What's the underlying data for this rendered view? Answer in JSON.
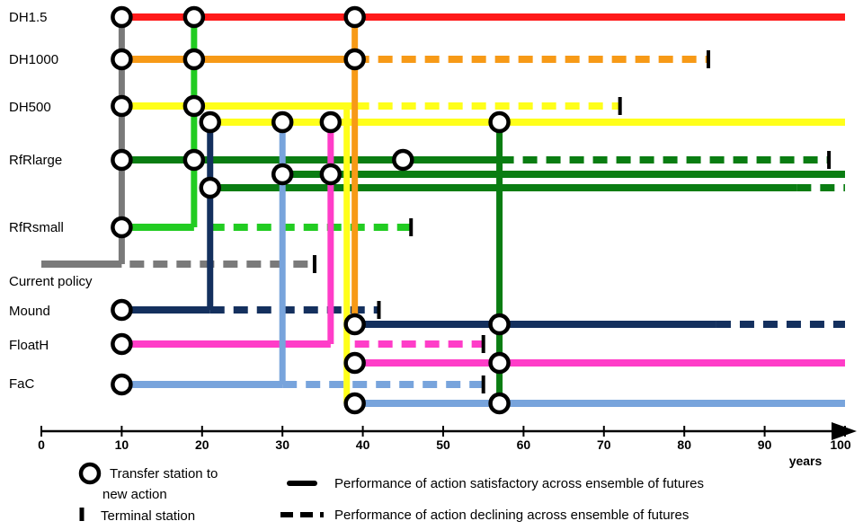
{
  "colors": {
    "DH1.5": "#ff1a1a",
    "DH1000": "#f79a17",
    "DH500": "#ffff1a",
    "RfRlarge": "#0a7d12",
    "RfRsmall": "#22cc22",
    "Current policy": "#7a7a7a",
    "Mound": "#14305e",
    "FloatH": "#ff3dc8",
    "FaC": "#78a4dc"
  },
  "action_labels": [
    "DH1.5",
    "DH1000",
    "DH500",
    "RfRlarge",
    "RfRsmall",
    "Current policy",
    "Mound",
    "FloatH",
    "FaC"
  ],
  "chart_data": {
    "type": "adaptation-pathways-map",
    "xaxis": {
      "range": [
        0,
        100
      ],
      "ticks": [
        0,
        10,
        20,
        30,
        40,
        50,
        60,
        70,
        80,
        90,
        100
      ],
      "label": "years"
    },
    "segments": [
      {
        "action": "DH1.5",
        "row": "DH1.5",
        "from": 10,
        "to": 100,
        "style": "solid"
      },
      {
        "action": "DH1000",
        "row": "DH1000",
        "from": 10,
        "to": 39,
        "style": "solid"
      },
      {
        "action": "DH1000",
        "row": "DH1000",
        "from": 39,
        "to": 83,
        "style": "dashed"
      },
      {
        "action": "DH500",
        "row": "DH500",
        "from": 10,
        "to": 39,
        "style": "solid"
      },
      {
        "action": "DH500",
        "row": "DH500",
        "from": 39,
        "to": 72,
        "style": "dashed"
      },
      {
        "action": "DH500",
        "row": "DH500b",
        "from": 21,
        "to": 100,
        "style": "solid"
      },
      {
        "action": "RfRlarge",
        "row": "RfRlarge",
        "from": 10,
        "to": 57,
        "style": "solid"
      },
      {
        "action": "RfRlarge",
        "row": "RfRlarge",
        "from": 57,
        "to": 98,
        "style": "dashed"
      },
      {
        "action": "RfRlarge",
        "row": "RfRlargeb",
        "from": 30,
        "to": 100,
        "style": "solid"
      },
      {
        "action": "RfRlarge",
        "row": "RfRlargec",
        "from": 21,
        "to": 94,
        "style": "solid"
      },
      {
        "action": "RfRlarge",
        "row": "RfRlargec",
        "from": 94,
        "to": 100,
        "style": "dashed"
      },
      {
        "action": "RfRsmall",
        "row": "RfRsmall",
        "from": 10,
        "to": 19,
        "style": "solid"
      },
      {
        "action": "RfRsmall",
        "row": "RfRsmall",
        "from": 21,
        "to": 46,
        "style": "dashed"
      },
      {
        "action": "Current policy",
        "row": "Current policy",
        "from": 0,
        "to": 10,
        "style": "solid"
      },
      {
        "action": "Current policy",
        "row": "Current policy",
        "from": 11,
        "to": 34,
        "style": "dashed"
      },
      {
        "action": "Mound",
        "row": "Mound",
        "from": 10,
        "to": 21,
        "style": "solid"
      },
      {
        "action": "Mound",
        "row": "Mound",
        "from": 21,
        "to": 42,
        "style": "dashed"
      },
      {
        "action": "Mound",
        "row": "Moundb",
        "from": 39,
        "to": 84,
        "style": "solid"
      },
      {
        "action": "Mound",
        "row": "Moundb",
        "from": 84,
        "to": 100,
        "style": "dashed"
      },
      {
        "action": "FloatH",
        "row": "FloatH",
        "from": 10,
        "to": 36,
        "style": "solid"
      },
      {
        "action": "FloatH",
        "row": "FloatH",
        "from": 39,
        "to": 55,
        "style": "dashed"
      },
      {
        "action": "FloatH",
        "row": "FloatHb",
        "from": 39,
        "to": 100,
        "style": "solid"
      },
      {
        "action": "FaC",
        "row": "FaC",
        "from": 10,
        "to": 30,
        "style": "solid"
      },
      {
        "action": "FaC",
        "row": "FaC",
        "from": 30,
        "to": 55,
        "style": "dashed"
      },
      {
        "action": "FaC",
        "row": "FaCb",
        "from": 39,
        "to": 100,
        "style": "solid"
      }
    ],
    "transfers": [
      {
        "action": "Current policy",
        "at": 10,
        "from_row": "Current policy",
        "to_row": "DH1.5"
      },
      {
        "action": "RfRsmall",
        "at": 19,
        "from_row": "RfRsmall",
        "to_row": "DH1.5"
      },
      {
        "action": "Mound",
        "at": 21,
        "from_row": "Mound",
        "to_row": "DH500b"
      },
      {
        "action": "FaC",
        "at": 30,
        "from_row": "FaC",
        "to_row": "DH500b"
      },
      {
        "action": "FloatH",
        "at": 36,
        "from_row": "FloatH",
        "to_row": "DH500b"
      },
      {
        "action": "DH500",
        "at": 38,
        "from_row": "DH500",
        "to_row": "FaCb"
      },
      {
        "action": "DH1000",
        "at": 39,
        "from_row": "DH1.5",
        "to_row": "Moundb"
      },
      {
        "action": "RfRlarge",
        "at": 57,
        "from_row": "DH500b",
        "to_row": "FaCb"
      }
    ],
    "stations": [
      {
        "at": 10,
        "row": "DH1.5"
      },
      {
        "at": 19,
        "row": "DH1.5"
      },
      {
        "at": 39,
        "row": "DH1.5"
      },
      {
        "at": 10,
        "row": "DH1000"
      },
      {
        "at": 19,
        "row": "DH1000"
      },
      {
        "at": 39,
        "row": "DH1000"
      },
      {
        "at": 10,
        "row": "DH500"
      },
      {
        "at": 19,
        "row": "DH500"
      },
      {
        "at": 21,
        "row": "DH500b"
      },
      {
        "at": 30,
        "row": "DH500b"
      },
      {
        "at": 36,
        "row": "DH500b"
      },
      {
        "at": 57,
        "row": "DH500b"
      },
      {
        "at": 10,
        "row": "RfRlarge"
      },
      {
        "at": 19,
        "row": "RfRlarge"
      },
      {
        "at": 45,
        "row": "RfRlarge"
      },
      {
        "at": 30,
        "row": "RfRlargeb"
      },
      {
        "at": 36,
        "row": "RfRlargeb"
      },
      {
        "at": 21,
        "row": "RfRlargec"
      },
      {
        "at": 10,
        "row": "RfRsmall"
      },
      {
        "at": 10,
        "row": "Mound"
      },
      {
        "at": 39,
        "row": "Moundb"
      },
      {
        "at": 57,
        "row": "Moundb"
      },
      {
        "at": 10,
        "row": "FloatH"
      },
      {
        "at": 39,
        "row": "FloatHb"
      },
      {
        "at": 57,
        "row": "FloatHb"
      },
      {
        "at": 10,
        "row": "FaC"
      },
      {
        "at": 39,
        "row": "FaCb"
      },
      {
        "at": 57,
        "row": "FaCb"
      }
    ],
    "terminals": [
      {
        "at": 83,
        "row": "DH1000"
      },
      {
        "at": 72,
        "row": "DH500"
      },
      {
        "at": 98,
        "row": "RfRlarge"
      },
      {
        "at": 46,
        "row": "RfRsmall"
      },
      {
        "at": 34,
        "row": "Current policy"
      },
      {
        "at": 42,
        "row": "Mound"
      },
      {
        "at": 55,
        "row": "FloatH"
      },
      {
        "at": 55,
        "row": "FaC"
      }
    ]
  },
  "legend": {
    "transfer_station": "Transfer station to new action",
    "terminal_station": "Terminal station",
    "satisfactory": "Performance of action satisfactory across ensemble of futures",
    "declining": "Performance of action declining across ensemble of futures"
  }
}
